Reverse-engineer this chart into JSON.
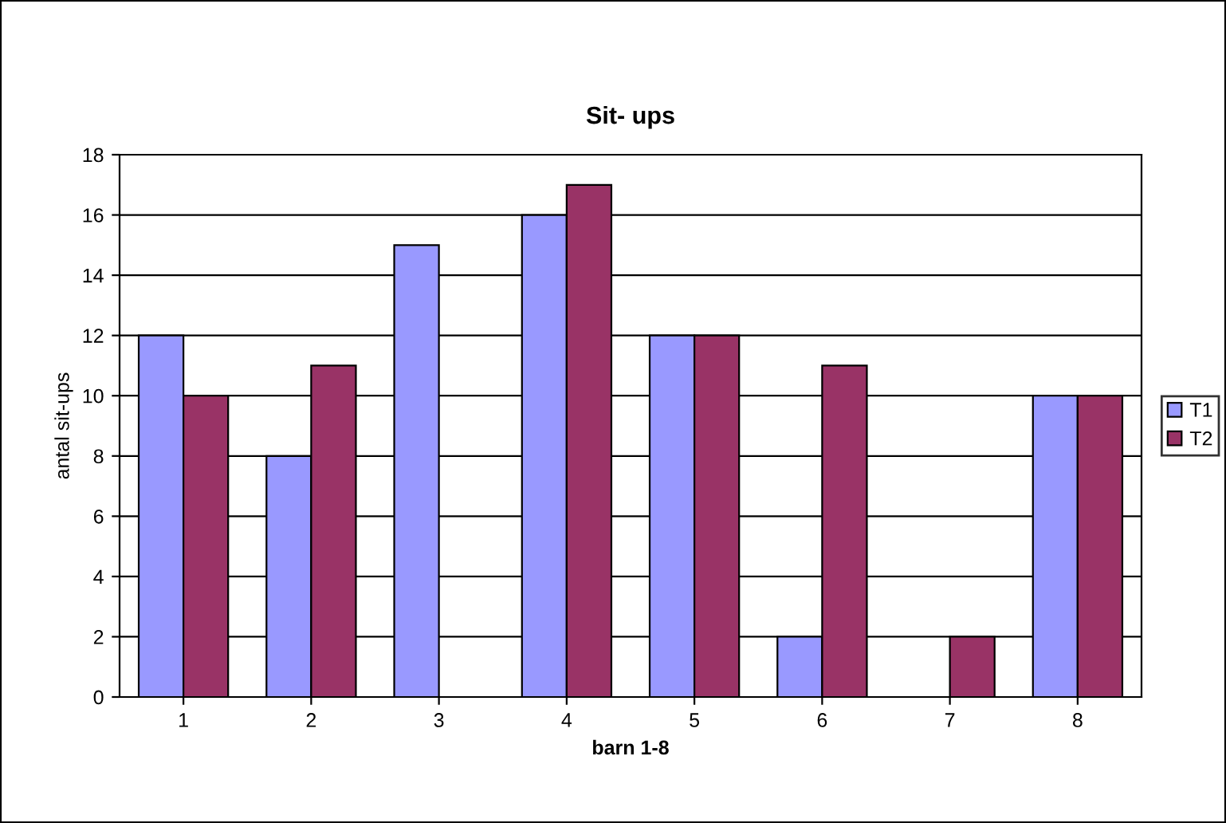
{
  "chart_data": {
    "type": "bar",
    "title": "Sit- ups",
    "xlabel": "barn 1-8",
    "ylabel": "antal sit-ups",
    "categories": [
      "1",
      "2",
      "3",
      "4",
      "5",
      "6",
      "7",
      "8"
    ],
    "series": [
      {
        "name": "T1",
        "color": "#9999ff",
        "values": [
          12,
          8,
          15,
          16,
          12,
          2,
          null,
          10
        ]
      },
      {
        "name": "T2",
        "color": "#993366",
        "values": [
          10,
          11,
          null,
          17,
          12,
          11,
          2,
          10
        ]
      }
    ],
    "ylim": [
      0,
      18
    ],
    "yticks": [
      0,
      2,
      4,
      6,
      8,
      10,
      12,
      14,
      16,
      18
    ],
    "grid": "y",
    "legend": "right"
  }
}
